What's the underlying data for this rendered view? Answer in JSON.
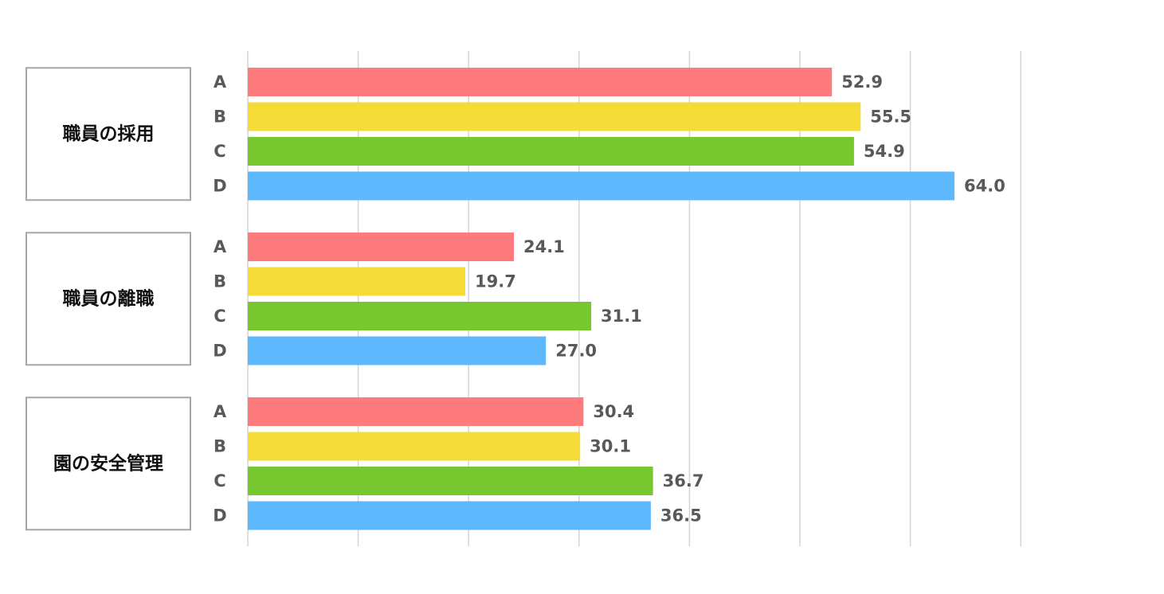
{
  "chart_data": {
    "type": "bar",
    "orientation": "horizontal",
    "categories": [
      "職員の採用",
      "職員の離職",
      "園の安全管理"
    ],
    "series": [
      {
        "name": "A",
        "color": "#fe7b7d",
        "values": [
          52.9,
          24.1,
          30.4
        ]
      },
      {
        "name": "B",
        "color": "#f5db35",
        "values": [
          55.5,
          19.7,
          30.1
        ]
      },
      {
        "name": "C",
        "color": "#77c72f",
        "values": [
          54.9,
          31.1,
          36.7
        ]
      },
      {
        "name": "D",
        "color": "#5db8fe",
        "values": [
          64.0,
          27.0,
          36.5
        ]
      }
    ],
    "xlim": [
      0,
      70
    ],
    "x_grid_step": 10,
    "grid": true,
    "legend": "none",
    "title": "",
    "xlabel": "",
    "ylabel": ""
  }
}
